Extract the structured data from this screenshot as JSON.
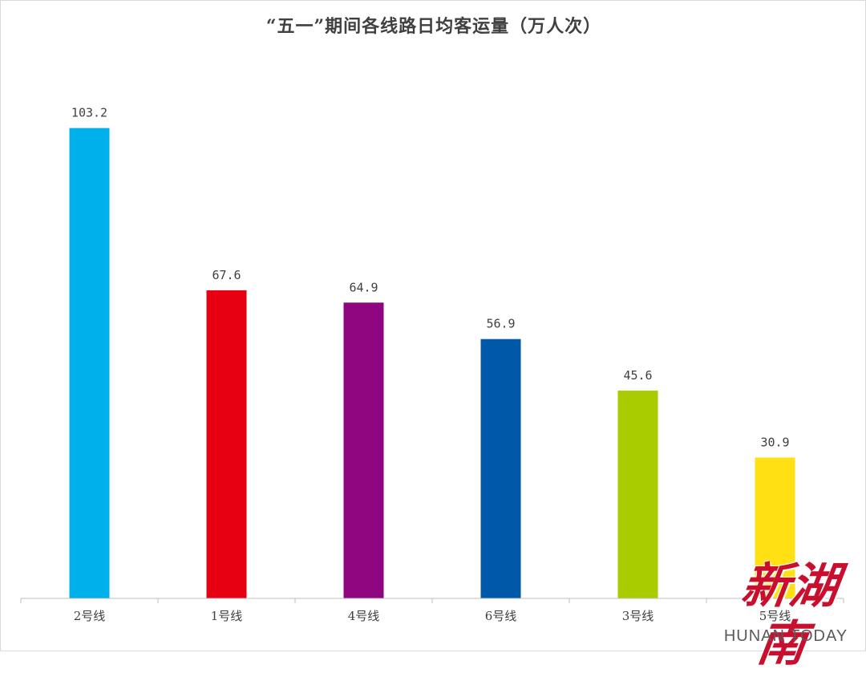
{
  "chart_data": {
    "type": "bar",
    "title": "“五一”期间各线路日均客运量（万人次）",
    "categories": [
      "2号线",
      "1号线",
      "4号线",
      "6号线",
      "3号线",
      "5号线"
    ],
    "values": [
      103.2,
      67.6,
      64.9,
      56.9,
      45.6,
      30.9
    ],
    "value_labels": [
      "103.2",
      "67.6",
      "64.9",
      "56.9",
      "45.6",
      "30.9"
    ],
    "colors": [
      "#00b0ea",
      "#e60012",
      "#8e067f",
      "#0058a8",
      "#a8cc00",
      "#ffe012"
    ],
    "xlabel": "",
    "ylabel": "",
    "ylim": [
      0,
      110
    ],
    "grid": false,
    "legend": "none"
  },
  "watermark": {
    "brand": "新湖南",
    "subtitle": "HUNAN TODAY"
  }
}
